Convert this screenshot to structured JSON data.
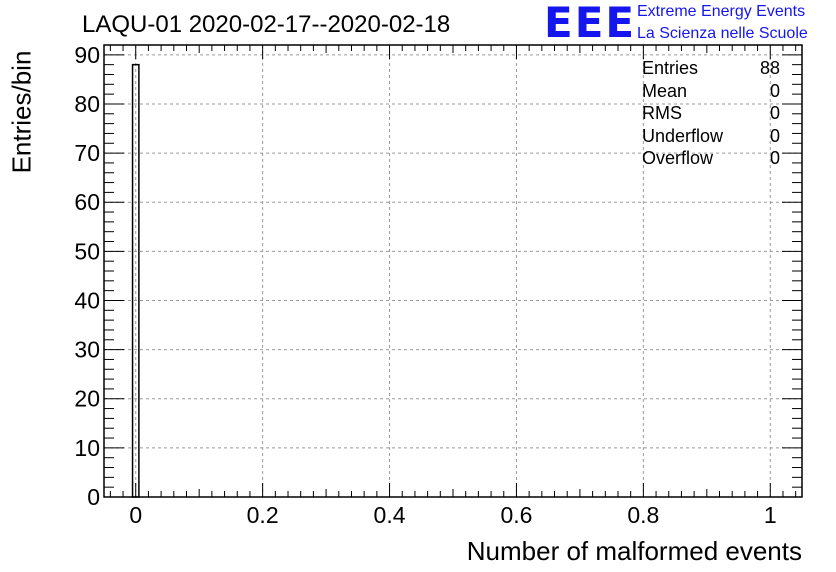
{
  "chart_data": {
    "type": "bar",
    "title": "LAQU-01 2020-02-17--2020-02-18",
    "xlabel": "Number of malformed events",
    "ylabel": "Entries/bin",
    "xlim": [
      -0.05,
      1.05
    ],
    "ylim": [
      0,
      92
    ],
    "grid": true,
    "bins": [
      {
        "low": -0.005,
        "high": 0.005,
        "value": 88
      }
    ],
    "xticks": [
      {
        "value": 0,
        "label": "0"
      },
      {
        "value": 0.2,
        "label": "0.2"
      },
      {
        "value": 0.4,
        "label": "0.4"
      },
      {
        "value": 0.6,
        "label": "0.6"
      },
      {
        "value": 0.8,
        "label": "0.8"
      },
      {
        "value": 1,
        "label": "1"
      }
    ],
    "yticks": [
      {
        "value": 0,
        "label": "0"
      },
      {
        "value": 10,
        "label": "10"
      },
      {
        "value": 20,
        "label": "20"
      },
      {
        "value": 30,
        "label": "30"
      },
      {
        "value": 40,
        "label": "40"
      },
      {
        "value": 50,
        "label": "50"
      },
      {
        "value": 60,
        "label": "60"
      },
      {
        "value": 70,
        "label": "70"
      },
      {
        "value": 80,
        "label": "80"
      },
      {
        "value": 90,
        "label": "90"
      }
    ],
    "stats": [
      {
        "label": "Entries",
        "value": "88"
      },
      {
        "label": "Mean",
        "value": "0"
      },
      {
        "label": "RMS",
        "value": "0"
      },
      {
        "label": "Underflow",
        "value": "0"
      },
      {
        "label": "Overflow",
        "value": "0"
      }
    ]
  },
  "logo": {
    "letters": "EEE",
    "line1": "Extreme Energy Events",
    "line2": "La Scienza nelle Scuole",
    "color": "#1515ee"
  }
}
